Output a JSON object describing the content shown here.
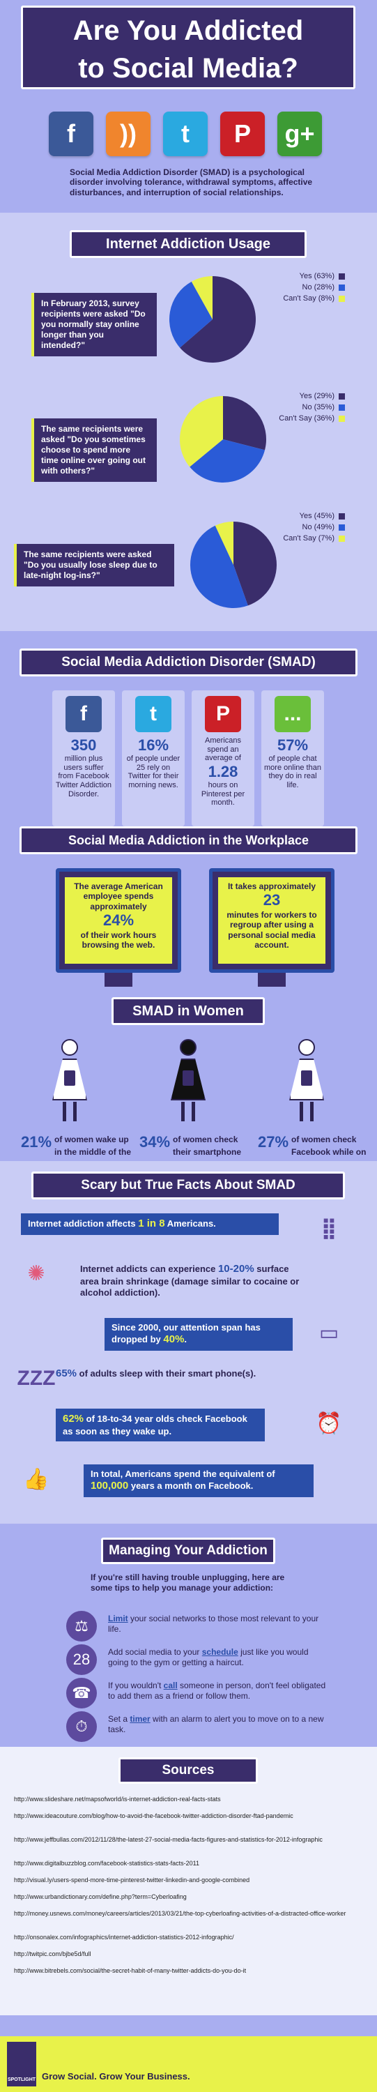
{
  "header": {
    "title_line1": "Are You Addicted",
    "title_line2": "to Social Media?",
    "intro": "Social Media Addiction Disorder (SMAD) is a psychological disorder involving tolerance, withdrawal symptoms, affective disturbances, and interruption of social relationships."
  },
  "social_icons": [
    {
      "name": "facebook-icon",
      "glyph": "f",
      "color": "#3b5998"
    },
    {
      "name": "rss-icon",
      "glyph": "))",
      "color": "#f0852d"
    },
    {
      "name": "twitter-icon",
      "glyph": "t",
      "color": "#2aa9e0"
    },
    {
      "name": "pinterest-icon",
      "glyph": "P",
      "color": "#cb2027"
    },
    {
      "name": "google-plus-icon",
      "glyph": "g+",
      "color": "#3d9b35"
    }
  ],
  "usage": {
    "title": "Internet Addiction Usage",
    "questions": [
      {
        "text": "In February 2013, survey recipients were asked \"Do you normally stay online longer than you intended?\"",
        "legend": [
          "Yes (63%)",
          "No (28%)",
          "Can't Say (8%)"
        ],
        "values": [
          63,
          28,
          8
        ]
      },
      {
        "text": "The same recipients were asked \"Do you sometimes choose to spend more time online over going out with others?\"",
        "legend": [
          "Yes (29%)",
          "No (35%)",
          "Can't Say (36%)"
        ],
        "values": [
          29,
          35,
          36
        ]
      },
      {
        "text": "The same recipients were asked \"Do you usually lose sleep due to late-night log-ins?\"",
        "legend": [
          "Yes (45%)",
          "No (49%)",
          "Can't Say (7%)"
        ],
        "values": [
          45,
          49,
          7
        ]
      }
    ],
    "colors": [
      "#3a2d6b",
      "#2a5bd7",
      "#e8f24a"
    ]
  },
  "smad": {
    "title": "Social Media Addiction Disorder (SMAD)",
    "cards": [
      {
        "icon": "f",
        "color": "#3b5998",
        "big": "350",
        "text": "million plus users suffer from Facebook Twitter Addiction Disorder."
      },
      {
        "icon": "t",
        "color": "#2aa9e0",
        "big": "16%",
        "text": "of people under 25 rely on Twitter for their morning news."
      },
      {
        "icon": "P",
        "color": "#cb2027",
        "big": "1.28",
        "text_top": "Americans spend an average of",
        "text": "hours on Pinterest per month."
      },
      {
        "icon": "...",
        "color": "#6abf3a",
        "big": "57%",
        "text": "of people chat more online than they do in real life."
      }
    ]
  },
  "workplace": {
    "title": "Social Media Addiction in the Workplace",
    "left_top": "The average American employee spends approximately",
    "left_big": "24%",
    "left_bottom": "of their work hours browsing the web.",
    "right_top": "It takes approximately",
    "right_big": "23",
    "right_bottom": "minutes for workers to regroup after using a personal social media account."
  },
  "women": {
    "title": "SMAD in Women",
    "stats": [
      {
        "pct": "21%",
        "text": "of women wake up in the middle of the night to check Facebook."
      },
      {
        "pct": "34%",
        "text": "of women check their smartphone before getting out of bed."
      },
      {
        "pct": "27%",
        "text": "of women check Facebook while on the toilet."
      }
    ]
  },
  "facts": {
    "title": "Scary but True Facts About SMAD",
    "items": [
      {
        "pre": "Internet addiction affects ",
        "hl": "1 in 8",
        "post": " Americans."
      },
      {
        "pre": "Internet addicts can experience ",
        "hl": "10-20%",
        "post": " surface area brain shrinkage (damage similar to cocaine or alcohol addiction)."
      },
      {
        "pre": "Since 2000, our attention span has dropped by ",
        "hl": "40%",
        "post": "."
      },
      {
        "pre": "",
        "hl": "65%",
        "post": " of adults sleep with their smart phone(s)."
      },
      {
        "pre": "",
        "hl": "62%",
        "post": " of 18-to-34 year olds check Facebook as soon as they wake up."
      },
      {
        "pre": "In total, Americans spend the equivalent of ",
        "hl": "100,000",
        "post": " years a month on Facebook."
      }
    ]
  },
  "managing": {
    "title": "Managing Your Addiction",
    "intro": "If you're still having trouble unplugging, here are some tips to help you manage your addiction:",
    "tips": [
      {
        "icon": "⚖",
        "pre": "",
        "hl": "Limit",
        "post": " your social networks to those most relevant to your life."
      },
      {
        "icon": "28",
        "pre": "Add social media to your ",
        "hl": "schedule",
        "post": " just like you would going to the gym or getting a haircut."
      },
      {
        "icon": "☎",
        "pre": "If you wouldn't ",
        "hl": "call",
        "post": " someone in person, don't feel obligated to add them as a friend or follow them."
      },
      {
        "icon": "⏱",
        "pre": "Set a ",
        "hl": "timer",
        "post": " with an alarm to alert you to move on to a new task."
      }
    ]
  },
  "sources": {
    "title": "Sources",
    "links": [
      "http://www.slideshare.net/mapsofworld/is-internet-addiction-real-facts-stats",
      "http://www.ideacouture.com/blog/how-to-avoid-the-facebook-twitter-addiction-disorder-ftad-pandemic",
      "http://www.jeffbullas.com/2012/11/28/the-latest-27-social-media-facts-figures-and-statistics-for-2012-infographic",
      "http://www.digitalbuzzblog.com/facebook-statistics-stats-facts-2011",
      "http://visual.ly/users-spend-more-time-pinterest-twitter-linkedin-and-google-combined",
      "http://www.urbandictionary.com/define.php?term=Cyberloafing",
      "http://money.usnews.com/money/careers/articles/2013/03/21/the-top-cyberloafing-activities-of-a-distracted-office-worker",
      "http://onsonalex.com/infographics/internet-addiction-statistics-2012-infographic/",
      "http://twitpic.com/bjbe5d/full",
      "http://www.bitrebels.com/social/the-secret-habit-of-many-twitter-addicts-do-you-do-it"
    ]
  },
  "footer": {
    "logo": "SPOTLIGHT",
    "tagline": "Grow Social. Grow Your Business."
  }
}
